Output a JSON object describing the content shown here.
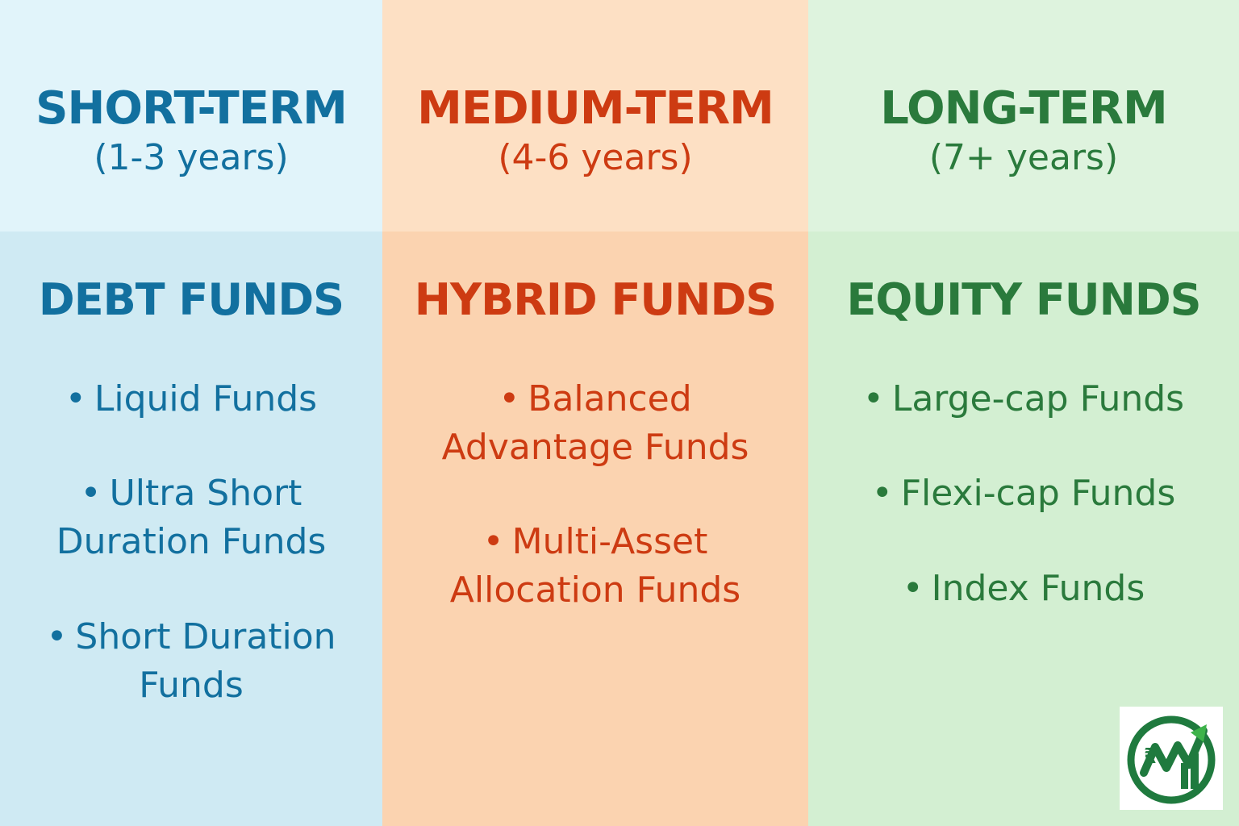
{
  "columns": {
    "short": {
      "term": "SHORT-TERM",
      "range": "(1-3 years)",
      "fund_type": "DEBT FUNDS",
      "items": [
        {
          "bullet": "•",
          "lines": [
            "Liquid Funds"
          ]
        },
        {
          "bullet": "•",
          "lines": [
            "Ultra Short",
            "Duration Funds"
          ]
        },
        {
          "bullet": "•",
          "lines": [
            "Short Duration",
            "Funds"
          ]
        }
      ]
    },
    "medium": {
      "term": "MEDIUM-TERM",
      "range": "(4-6 years)",
      "fund_type": "HYBRID FUNDS",
      "items": [
        {
          "bullet": "•",
          "lines": [
            "Balanced",
            "Advantage Funds"
          ]
        },
        {
          "bullet": "•",
          "lines": [
            "Multi-Asset",
            "Allocation Funds"
          ]
        }
      ]
    },
    "long": {
      "term": "LONG-TERM",
      "range": "(7+ years)",
      "fund_type": "EQUITY FUNDS",
      "items": [
        {
          "bullet": "•",
          "lines": [
            "Large-cap Funds"
          ]
        },
        {
          "bullet": "•",
          "lines": [
            "Flexi-cap Funds"
          ]
        },
        {
          "bullet": "•",
          "lines": [
            "Index Funds"
          ]
        }
      ]
    }
  },
  "colors": {
    "short_text": "#12709f",
    "medium_text": "#cd3b12",
    "long_text": "#2a7a3c",
    "logo_green": "#1f7a3e"
  },
  "logo": {
    "icon": "rupee-growth-logo-icon"
  }
}
